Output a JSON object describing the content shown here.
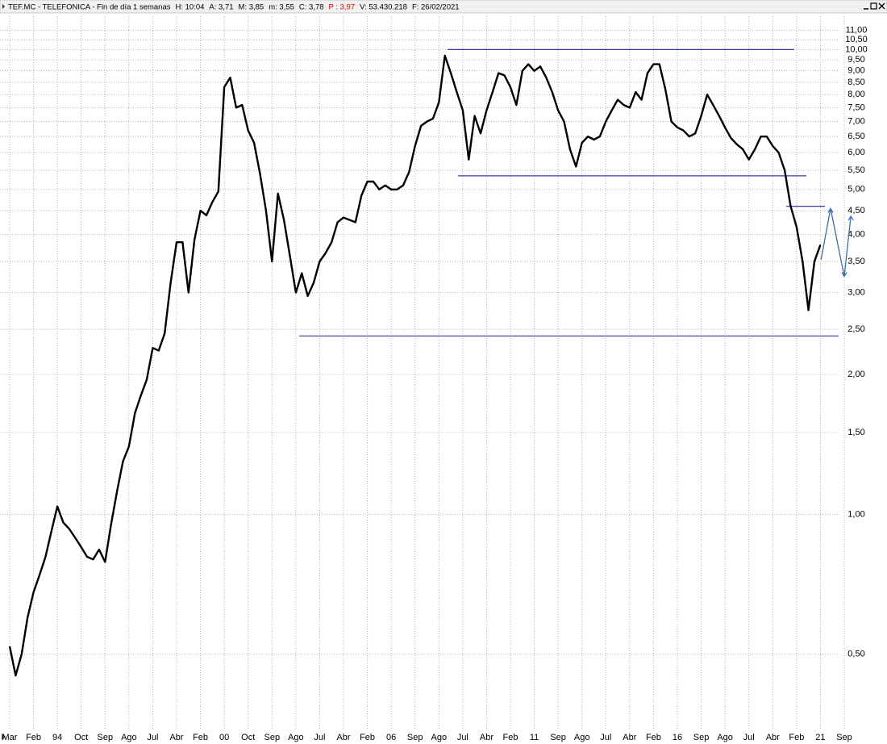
{
  "header": {
    "title": "TEF.MC - TELEFONICA - Fin de día 1 semanas",
    "fields": [
      {
        "text": "H: 10:04",
        "color": "#000000"
      },
      {
        "text": "A: 3,71",
        "color": "#000000"
      },
      {
        "text": "M: 3,85",
        "color": "#000000"
      },
      {
        "text": "m: 3,55",
        "color": "#000000"
      },
      {
        "text": "C: 3,78",
        "color": "#000000"
      },
      {
        "text": "P : 3,97",
        "color": "#e00000"
      },
      {
        "text": "V: 53.430.218",
        "color": "#000000"
      },
      {
        "text": "F: 26/02/2021",
        "color": "#000000"
      }
    ]
  },
  "chart_data": {
    "type": "line",
    "log_scale": true,
    "grid": true,
    "categories": [
      "Mar",
      null,
      null,
      null,
      "Feb",
      null,
      null,
      null,
      "94",
      null,
      null,
      null,
      "Oct",
      null,
      null,
      null,
      "Sep",
      null,
      null,
      null,
      "Ago",
      null,
      null,
      null,
      "Jul",
      null,
      null,
      null,
      "Abr",
      null,
      null,
      null,
      "Feb",
      null,
      null,
      null,
      "00",
      null,
      null,
      null,
      "Oct",
      null,
      null,
      null,
      "Sep",
      null,
      null,
      null,
      "Ago",
      null,
      null,
      null,
      "Jul",
      null,
      null,
      null,
      "Abr",
      null,
      null,
      null,
      "Feb",
      null,
      null,
      null,
      "06",
      null,
      null,
      null,
      "Sep",
      null,
      null,
      null,
      "Ago",
      null,
      null,
      null,
      "Jul",
      null,
      null,
      null,
      "Abr",
      null,
      null,
      null,
      "Feb",
      null,
      null,
      null,
      "11",
      null,
      null,
      null,
      "Sep",
      null,
      null,
      null,
      "Ago",
      null,
      null,
      null,
      "Jul",
      null,
      null,
      null,
      "Abr",
      null,
      null,
      null,
      "Feb",
      null,
      null,
      null,
      "16",
      null,
      null,
      null,
      "Sep",
      null,
      null,
      null,
      "Ago",
      null,
      null,
      null,
      "Jul",
      null,
      null,
      null,
      "Abr",
      null,
      null,
      null,
      "Feb",
      null,
      null,
      null,
      "21",
      null,
      null,
      null,
      "Sep"
    ],
    "series": [
      {
        "name": "TEF.MC",
        "color": "#000000",
        "values": [
          0.52,
          0.45,
          0.5,
          0.6,
          0.68,
          0.74,
          0.81,
          0.92,
          1.04,
          0.96,
          0.93,
          0.89,
          0.85,
          0.81,
          0.8,
          0.84,
          0.79,
          0.95,
          1.12,
          1.3,
          1.4,
          1.65,
          1.8,
          1.95,
          2.28,
          2.25,
          2.45,
          3.15,
          3.85,
          3.85,
          3.0,
          3.9,
          4.5,
          4.4,
          4.7,
          4.95,
          8.3,
          8.7,
          7.5,
          7.6,
          6.7,
          6.3,
          5.4,
          4.5,
          3.5,
          4.9,
          4.3,
          3.6,
          3.0,
          3.3,
          2.95,
          3.15,
          3.5,
          3.65,
          3.85,
          4.25,
          4.35,
          4.3,
          4.25,
          4.85,
          5.2,
          5.2,
          5.0,
          5.1,
          5.0,
          5.0,
          5.1,
          5.45,
          6.2,
          6.85,
          7.0,
          7.1,
          7.7,
          9.7,
          8.9,
          8.1,
          7.4,
          5.8,
          7.2,
          6.6,
          7.4,
          8.1,
          8.9,
          8.8,
          8.3,
          7.6,
          9.0,
          9.3,
          9.0,
          9.2,
          8.7,
          8.1,
          7.4,
          7.0,
          6.1,
          5.6,
          6.3,
          6.5,
          6.4,
          6.5,
          7.0,
          7.4,
          7.8,
          7.6,
          7.5,
          8.1,
          7.8,
          8.9,
          9.3,
          9.3,
          8.2,
          7.0,
          6.8,
          6.7,
          6.5,
          6.6,
          7.2,
          8.0,
          7.6,
          7.2,
          6.8,
          6.45,
          6.25,
          6.1,
          5.8,
          6.1,
          6.5,
          6.5,
          6.2,
          6.0,
          5.5,
          4.6,
          4.15,
          3.5,
          2.75,
          3.5,
          3.8,
          null,
          null,
          null,
          null
        ]
      }
    ],
    "ylim": [
      0.35,
      11.8
    ],
    "yticks": [
      {
        "value": 0.5,
        "label": "0,50"
      },
      {
        "value": 1,
        "label": "1,00"
      },
      {
        "value": 1.5,
        "label": "1,50"
      },
      {
        "value": 2,
        "label": "2,00"
      },
      {
        "value": 2.5,
        "label": "2,50"
      },
      {
        "value": 3,
        "label": "3,00"
      },
      {
        "value": 3.5,
        "label": "3,50"
      },
      {
        "value": 4,
        "label": "4,00"
      },
      {
        "value": 4.5,
        "label": "4,50"
      },
      {
        "value": 5,
        "label": "5,00"
      },
      {
        "value": 5.5,
        "label": "5,50"
      },
      {
        "value": 6,
        "label": "6,00"
      },
      {
        "value": 6.5,
        "label": "6,50"
      },
      {
        "value": 7,
        "label": "7,00"
      },
      {
        "value": 7.5,
        "label": "7,50"
      },
      {
        "value": 8,
        "label": "8,00"
      },
      {
        "value": 8.5,
        "label": "8,50"
      },
      {
        "value": 9,
        "label": "9,00"
      },
      {
        "value": 9.5,
        "label": "9,50"
      },
      {
        "value": 10,
        "label": "10,00"
      },
      {
        "value": 10.5,
        "label": "10,50"
      },
      {
        "value": 11,
        "label": "11,00"
      }
    ],
    "annotation_color": "#3a3aa8",
    "hlines": [
      {
        "value": 10.0,
        "x": [
          73.45,
          131.6
        ]
      },
      {
        "value": 5.35,
        "x": [
          75.2,
          133.65
        ]
      },
      {
        "value": 2.42,
        "x": [
          48.56,
          139.06
        ]
      },
      {
        "value": 4.6,
        "x": [
          130.27,
          136.76
        ]
      }
    ],
    "projection": {
      "color": "#3c6fa8",
      "x": [
        136.1,
        137.7,
        140,
        141.1
      ],
      "values": [
        3.53,
        4.55,
        3.25,
        4.38
      ]
    }
  }
}
